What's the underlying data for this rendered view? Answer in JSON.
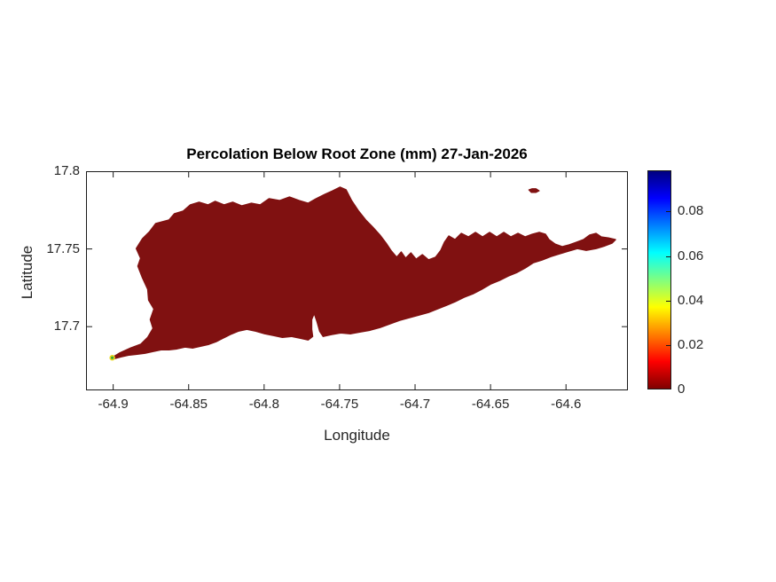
{
  "figure": {
    "title": "Percolation Below Root Zone (mm) 27-Jan-2026",
    "xlabel": "Longitude",
    "ylabel": "Latitude"
  },
  "chart_data": {
    "type": "heatmap",
    "subtype": "geographic-pcolor-map",
    "title": "Percolation Below Root Zone (mm) 27-Jan-2026",
    "xlabel": "Longitude",
    "ylabel": "Latitude",
    "xlim": [
      -64.918,
      -64.559
    ],
    "ylim": [
      17.659,
      17.8
    ],
    "xticks": [
      -64.9,
      -64.85,
      -64.8,
      -64.75,
      -64.7,
      -64.65,
      -64.6
    ],
    "xtick_labels": [
      "-64.9",
      "-64.85",
      "-64.8",
      "-64.75",
      "-64.7",
      "-64.65",
      "-64.6"
    ],
    "yticks": [
      17.8,
      17.75,
      17.7
    ],
    "ytick_labels": [
      "17.8",
      "17.75",
      "17.7"
    ],
    "grid": false,
    "box": true,
    "axes_color": "#1a1a1a",
    "tick_text_color": "#262626",
    "dominant_value": 0,
    "dominant_value_color": "#801111",
    "colormap": "jet-reversed",
    "colormap_stops": [
      {
        "pos": 0.0,
        "color": "#800000"
      },
      {
        "pos": 0.125,
        "color": "#ff0000"
      },
      {
        "pos": 0.375,
        "color": "#ffff00"
      },
      {
        "pos": 0.625,
        "color": "#00ffff"
      },
      {
        "pos": 0.875,
        "color": "#0000ff"
      },
      {
        "pos": 1.0,
        "color": "#000080"
      }
    ],
    "colorbar": {
      "position": "right",
      "min": 0,
      "max": 0.0985,
      "ticks": [
        0,
        0.02,
        0.04,
        0.06,
        0.08
      ],
      "tick_labels": [
        "0",
        "0.02",
        "0.04",
        "0.06",
        "0.08"
      ]
    },
    "hotspot": {
      "lon": -64.9006,
      "lat": 17.68,
      "outer_color": "#ead71f",
      "inner_color": "#3aa83a",
      "note": "small nonzero percolation cells at southwest tip"
    },
    "island_outline": [
      [
        -64.9018,
        17.6794
      ],
      [
        -64.8959,
        17.6829
      ],
      [
        -64.8883,
        17.6863
      ],
      [
        -64.8818,
        17.6886
      ],
      [
        -64.8771,
        17.6931
      ],
      [
        -64.8736,
        17.6989
      ],
      [
        -64.8754,
        17.7046
      ],
      [
        -64.873,
        17.7114
      ],
      [
        -64.8765,
        17.7171
      ],
      [
        -64.8771,
        17.724
      ],
      [
        -64.8806,
        17.7314
      ],
      [
        -64.8836,
        17.7389
      ],
      [
        -64.8818,
        17.744
      ],
      [
        -64.8847,
        17.7503
      ],
      [
        -64.8806,
        17.7566
      ],
      [
        -64.8759,
        17.7611
      ],
      [
        -64.8718,
        17.7663
      ],
      [
        -64.863,
        17.7686
      ],
      [
        -64.8595,
        17.7726
      ],
      [
        -64.8536,
        17.7743
      ],
      [
        -64.8489,
        17.7783
      ],
      [
        -64.8431,
        17.78
      ],
      [
        -64.8372,
        17.7783
      ],
      [
        -64.8325,
        17.7806
      ],
      [
        -64.8266,
        17.7783
      ],
      [
        -64.8208,
        17.78
      ],
      [
        -64.8149,
        17.7777
      ],
      [
        -64.8084,
        17.7794
      ],
      [
        -64.8026,
        17.7783
      ],
      [
        -64.7967,
        17.7823
      ],
      [
        -64.7897,
        17.7811
      ],
      [
        -64.7832,
        17.7834
      ],
      [
        -64.7768,
        17.7811
      ],
      [
        -64.7709,
        17.7794
      ],
      [
        -64.7656,
        17.7823
      ],
      [
        -64.7597,
        17.7851
      ],
      [
        -64.7545,
        17.7874
      ],
      [
        -64.7498,
        17.7897
      ],
      [
        -64.7457,
        17.788
      ],
      [
        -64.7421,
        17.7811
      ],
      [
        -64.7374,
        17.7743
      ],
      [
        -64.7327,
        17.7686
      ],
      [
        -64.728,
        17.764
      ],
      [
        -64.7233,
        17.7589
      ],
      [
        -64.7192,
        17.7537
      ],
      [
        -64.7157,
        17.7486
      ],
      [
        -64.7122,
        17.7446
      ],
      [
        -64.7092,
        17.748
      ],
      [
        -64.7063,
        17.744
      ],
      [
        -64.7028,
        17.7474
      ],
      [
        -64.6993,
        17.7434
      ],
      [
        -64.6952,
        17.7463
      ],
      [
        -64.6911,
        17.7429
      ],
      [
        -64.6864,
        17.7446
      ],
      [
        -64.6829,
        17.7491
      ],
      [
        -64.6805,
        17.7543
      ],
      [
        -64.6776,
        17.7583
      ],
      [
        -64.6735,
        17.756
      ],
      [
        -64.6694,
        17.76
      ],
      [
        -64.6647,
        17.7577
      ],
      [
        -64.66,
        17.7606
      ],
      [
        -64.6553,
        17.7577
      ],
      [
        -64.6506,
        17.7606
      ],
      [
        -64.6459,
        17.7577
      ],
      [
        -64.6412,
        17.7606
      ],
      [
        -64.6365,
        17.7577
      ],
      [
        -64.6318,
        17.76
      ],
      [
        -64.6271,
        17.7577
      ],
      [
        -64.6224,
        17.7594
      ],
      [
        -64.6177,
        17.7606
      ],
      [
        -64.6136,
        17.7594
      ],
      [
        -64.6113,
        17.756
      ],
      [
        -64.6072,
        17.7531
      ],
      [
        -64.6025,
        17.7514
      ],
      [
        -64.5978,
        17.7526
      ],
      [
        -64.5931,
        17.7543
      ],
      [
        -64.5884,
        17.756
      ],
      [
        -64.5843,
        17.7589
      ],
      [
        -64.5801,
        17.76
      ],
      [
        -64.5766,
        17.7577
      ],
      [
        -64.5719,
        17.7571
      ],
      [
        -64.5672,
        17.756
      ],
      [
        -64.5696,
        17.7537
      ],
      [
        -64.5743,
        17.752
      ],
      [
        -64.5801,
        17.7503
      ],
      [
        -64.5866,
        17.7491
      ],
      [
        -64.5925,
        17.7503
      ],
      [
        -64.5983,
        17.7486
      ],
      [
        -64.6042,
        17.7469
      ],
      [
        -64.6101,
        17.7451
      ],
      [
        -64.6159,
        17.7429
      ],
      [
        -64.6218,
        17.7411
      ],
      [
        -64.6271,
        17.7377
      ],
      [
        -64.6324,
        17.7349
      ],
      [
        -64.6382,
        17.7326
      ],
      [
        -64.6441,
        17.7297
      ],
      [
        -64.65,
        17.7274
      ],
      [
        -64.6559,
        17.724
      ],
      [
        -64.6617,
        17.7211
      ],
      [
        -64.6676,
        17.7189
      ],
      [
        -64.6735,
        17.716
      ],
      [
        -64.6793,
        17.7137
      ],
      [
        -64.6852,
        17.7114
      ],
      [
        -64.6911,
        17.7091
      ],
      [
        -64.6975,
        17.7074
      ],
      [
        -64.704,
        17.7057
      ],
      [
        -64.7104,
        17.704
      ],
      [
        -64.7169,
        17.7017
      ],
      [
        -64.7233,
        17.6994
      ],
      [
        -64.7298,
        17.6977
      ],
      [
        -64.7362,
        17.6966
      ],
      [
        -64.7427,
        17.6954
      ],
      [
        -64.7491,
        17.696
      ],
      [
        -64.7556,
        17.6949
      ],
      [
        -64.7609,
        17.6937
      ],
      [
        -64.7632,
        17.6971
      ],
      [
        -64.765,
        17.7034
      ],
      [
        -64.7668,
        17.7086
      ],
      [
        -64.7685,
        17.7046
      ],
      [
        -64.7685,
        17.6983
      ],
      [
        -64.7679,
        17.6937
      ],
      [
        -64.7709,
        17.6914
      ],
      [
        -64.7762,
        17.6926
      ],
      [
        -64.782,
        17.6937
      ],
      [
        -64.7879,
        17.6931
      ],
      [
        -64.7938,
        17.6943
      ],
      [
        -64.7996,
        17.6954
      ],
      [
        -64.8055,
        17.6971
      ],
      [
        -64.8114,
        17.6983
      ],
      [
        -64.8172,
        17.6971
      ],
      [
        -64.8225,
        17.6949
      ],
      [
        -64.8272,
        17.6926
      ],
      [
        -64.8319,
        17.6903
      ],
      [
        -64.8366,
        17.6886
      ],
      [
        -64.8419,
        17.6874
      ],
      [
        -64.8472,
        17.6863
      ],
      [
        -64.8524,
        17.6869
      ],
      [
        -64.8577,
        17.6857
      ],
      [
        -64.863,
        17.6851
      ],
      [
        -64.8683,
        17.6851
      ],
      [
        -64.8736,
        17.684
      ],
      [
        -64.8789,
        17.6829
      ],
      [
        -64.8841,
        17.6823
      ],
      [
        -64.8894,
        17.6817
      ],
      [
        -64.8947,
        17.6806
      ],
      [
        -64.8994,
        17.6794
      ]
    ],
    "buck_island_outline": [
      [
        -64.6247,
        17.788
      ],
      [
        -64.6224,
        17.7888
      ],
      [
        -64.62,
        17.7888
      ],
      [
        -64.6177,
        17.7874
      ],
      [
        -64.62,
        17.7863
      ],
      [
        -64.623,
        17.7863
      ]
    ]
  }
}
